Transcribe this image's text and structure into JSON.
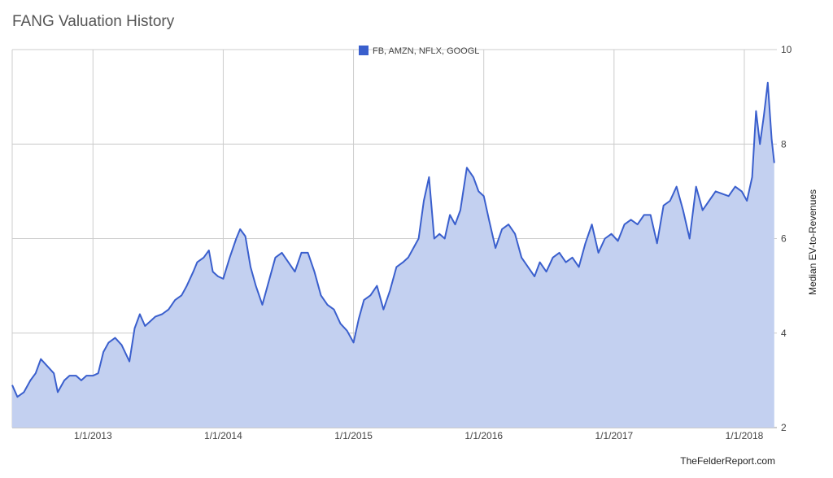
{
  "chart_data": {
    "type": "area",
    "title": "FANG Valuation History",
    "ylabel": "Median EV-to-Revenues",
    "xlabel": "",
    "ylim": [
      2,
      10
    ],
    "y_ticks": [
      "2",
      "4",
      "6",
      "8",
      "10"
    ],
    "x_ticks": [
      {
        "label": "1/1/2013",
        "x": 2013.0
      },
      {
        "label": "1/1/2014",
        "x": 2014.0
      },
      {
        "label": "1/1/2015",
        "x": 2015.0
      },
      {
        "label": "1/1/2016",
        "x": 2016.0
      },
      {
        "label": "1/1/2017",
        "x": 2017.0
      },
      {
        "label": "1/1/2018",
        "x": 2018.0
      }
    ],
    "xlim": [
      2012.38,
      2018.25
    ],
    "grid": true,
    "legend_position": "top-center",
    "series": [
      {
        "name": "FB, AMZN, NFLX, GOOGL",
        "color": "#3a5fcd",
        "fill": "#c3d0f0",
        "x": [
          2012.38,
          2012.42,
          2012.47,
          2012.52,
          2012.56,
          2012.6,
          2012.65,
          2012.7,
          2012.73,
          2012.78,
          2012.82,
          2012.87,
          2012.91,
          2012.95,
          2013.0,
          2013.04,
          2013.08,
          2013.12,
          2013.17,
          2013.22,
          2013.28,
          2013.32,
          2013.36,
          2013.4,
          2013.44,
          2013.48,
          2013.53,
          2013.58,
          2013.63,
          2013.68,
          2013.72,
          2013.77,
          2013.8,
          2013.85,
          2013.89,
          2013.92,
          2013.96,
          2014.0,
          2014.05,
          2014.1,
          2014.13,
          2014.17,
          2014.21,
          2014.25,
          2014.3,
          2014.35,
          2014.4,
          2014.45,
          2014.5,
          2014.55,
          2014.6,
          2014.65,
          2014.7,
          2014.75,
          2014.8,
          2014.85,
          2014.9,
          2014.95,
          2015.0,
          2015.04,
          2015.08,
          2015.13,
          2015.18,
          2015.23,
          2015.28,
          2015.33,
          2015.38,
          2015.42,
          2015.46,
          2015.5,
          2015.54,
          2015.58,
          2015.62,
          2015.66,
          2015.7,
          2015.74,
          2015.78,
          2015.82,
          2015.87,
          2015.92,
          2015.96,
          2016.0,
          2016.04,
          2016.09,
          2016.14,
          2016.19,
          2016.24,
          2016.29,
          2016.34,
          2016.39,
          2016.43,
          2016.48,
          2016.53,
          2016.58,
          2016.63,
          2016.68,
          2016.73,
          2016.78,
          2016.83,
          2016.88,
          2016.93,
          2016.98,
          2017.03,
          2017.08,
          2017.13,
          2017.18,
          2017.23,
          2017.28,
          2017.33,
          2017.38,
          2017.43,
          2017.48,
          2017.53,
          2017.58,
          2017.63,
          2017.68,
          2017.73,
          2017.78,
          2017.83,
          2017.88,
          2017.93,
          2017.98,
          2018.02,
          2018.06,
          2018.09,
          2018.12,
          2018.15,
          2018.18,
          2018.21,
          2018.23
        ],
        "values": [
          2.9,
          2.65,
          2.75,
          3.0,
          3.15,
          3.45,
          3.3,
          3.15,
          2.75,
          3.0,
          3.1,
          3.1,
          3.0,
          3.1,
          3.1,
          3.15,
          3.6,
          3.8,
          3.9,
          3.75,
          3.4,
          4.1,
          4.4,
          4.15,
          4.25,
          4.35,
          4.4,
          4.5,
          4.7,
          4.8,
          5.0,
          5.3,
          5.5,
          5.6,
          5.75,
          5.3,
          5.2,
          5.15,
          5.6,
          6.0,
          6.2,
          6.05,
          5.4,
          5.0,
          4.6,
          5.1,
          5.6,
          5.7,
          5.5,
          5.3,
          5.7,
          5.7,
          5.3,
          4.8,
          4.6,
          4.5,
          4.2,
          4.05,
          3.8,
          4.3,
          4.7,
          4.8,
          5.0,
          4.5,
          4.9,
          5.4,
          5.5,
          5.6,
          5.8,
          6.0,
          6.8,
          7.3,
          6.0,
          6.1,
          6.0,
          6.5,
          6.3,
          6.6,
          7.5,
          7.3,
          7.0,
          6.9,
          6.4,
          5.8,
          6.2,
          6.3,
          6.1,
          5.6,
          5.4,
          5.2,
          5.5,
          5.3,
          5.6,
          5.7,
          5.5,
          5.6,
          5.4,
          5.9,
          6.3,
          5.7,
          6.0,
          6.1,
          5.95,
          6.3,
          6.4,
          6.3,
          6.5,
          6.5,
          5.9,
          6.7,
          6.8,
          7.1,
          6.6,
          6.0,
          7.1,
          6.6,
          6.8,
          7.0,
          6.95,
          6.9,
          7.1,
          7.0,
          6.8,
          7.3,
          8.7,
          8.0,
          8.6,
          9.3,
          8.1,
          7.6
        ],
        "fill_series": true
      }
    ]
  },
  "credit": "TheFelderReport.com"
}
